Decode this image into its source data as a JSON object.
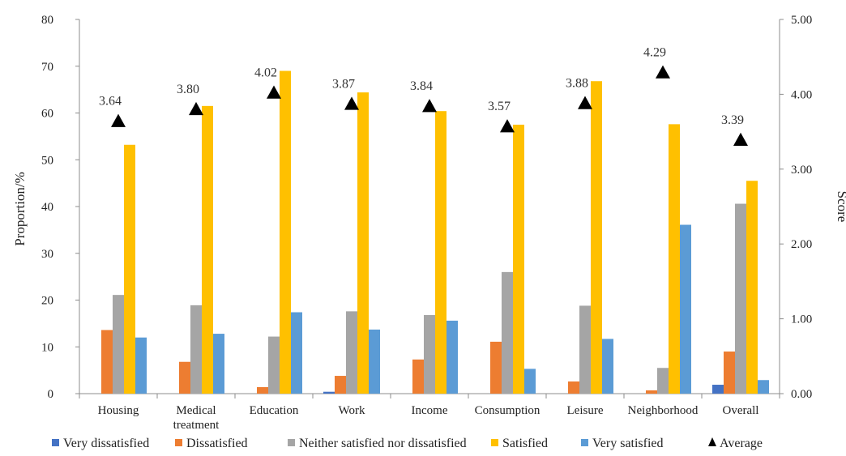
{
  "chart_data": {
    "type": "bar",
    "categories": [
      "Housing",
      "Medical treatment",
      "Education",
      "Work",
      "Income",
      "Consumption",
      "Leisure",
      "Neighborhood",
      "Overall"
    ],
    "category_lines": [
      [
        "Housing"
      ],
      [
        "Medical",
        "treatment"
      ],
      [
        "Education"
      ],
      [
        "Work"
      ],
      [
        "Income"
      ],
      [
        "Consumption"
      ],
      [
        "Leisure"
      ],
      [
        "Neighborhood"
      ],
      [
        "Overall"
      ]
    ],
    "series": [
      {
        "name": "Very dissatisfied",
        "color": "#4472C4",
        "values": [
          0,
          0,
          0,
          0.4,
          0,
          0,
          0,
          0,
          1.9
        ]
      },
      {
        "name": "Dissatisfied",
        "color": "#ED7D31",
        "values": [
          13.6,
          6.8,
          1.4,
          3.8,
          7.3,
          11.1,
          2.6,
          0.7,
          9.0
        ]
      },
      {
        "name": "Neither satisfied nor dissatisfied",
        "color": "#A5A5A5",
        "values": [
          21.1,
          18.9,
          12.2,
          17.6,
          16.8,
          26.0,
          18.8,
          5.5,
          40.6
        ]
      },
      {
        "name": "Satisfied",
        "color": "#FFC000",
        "values": [
          53.2,
          61.5,
          69.0,
          64.4,
          60.4,
          57.5,
          66.8,
          57.6,
          45.5
        ]
      },
      {
        "name": "Very satisfied",
        "color": "#5B9BD5",
        "values": [
          12.0,
          12.8,
          17.4,
          13.7,
          15.6,
          5.3,
          11.7,
          36.1,
          2.9
        ]
      }
    ],
    "average": {
      "name": "Average",
      "values": [
        3.64,
        3.8,
        4.02,
        3.87,
        3.84,
        3.57,
        3.88,
        4.29,
        3.39
      ],
      "labels": [
        "3.64",
        "3.80",
        "4.02",
        "3.87",
        "3.84",
        "3.57",
        "3.88",
        "4.29",
        "3.39"
      ]
    },
    "ylabel": "Proportion/%",
    "ylim": [
      0,
      80
    ],
    "yticks": [
      "0",
      "10",
      "20",
      "30",
      "40",
      "50",
      "60",
      "70",
      "80"
    ],
    "y2label": "Score",
    "y2lim": [
      0,
      5
    ],
    "y2ticks": [
      "0.00",
      "1.00",
      "2.00",
      "3.00",
      "4.00",
      "5.00"
    ],
    "legend_position": "bottom",
    "grid": false
  }
}
